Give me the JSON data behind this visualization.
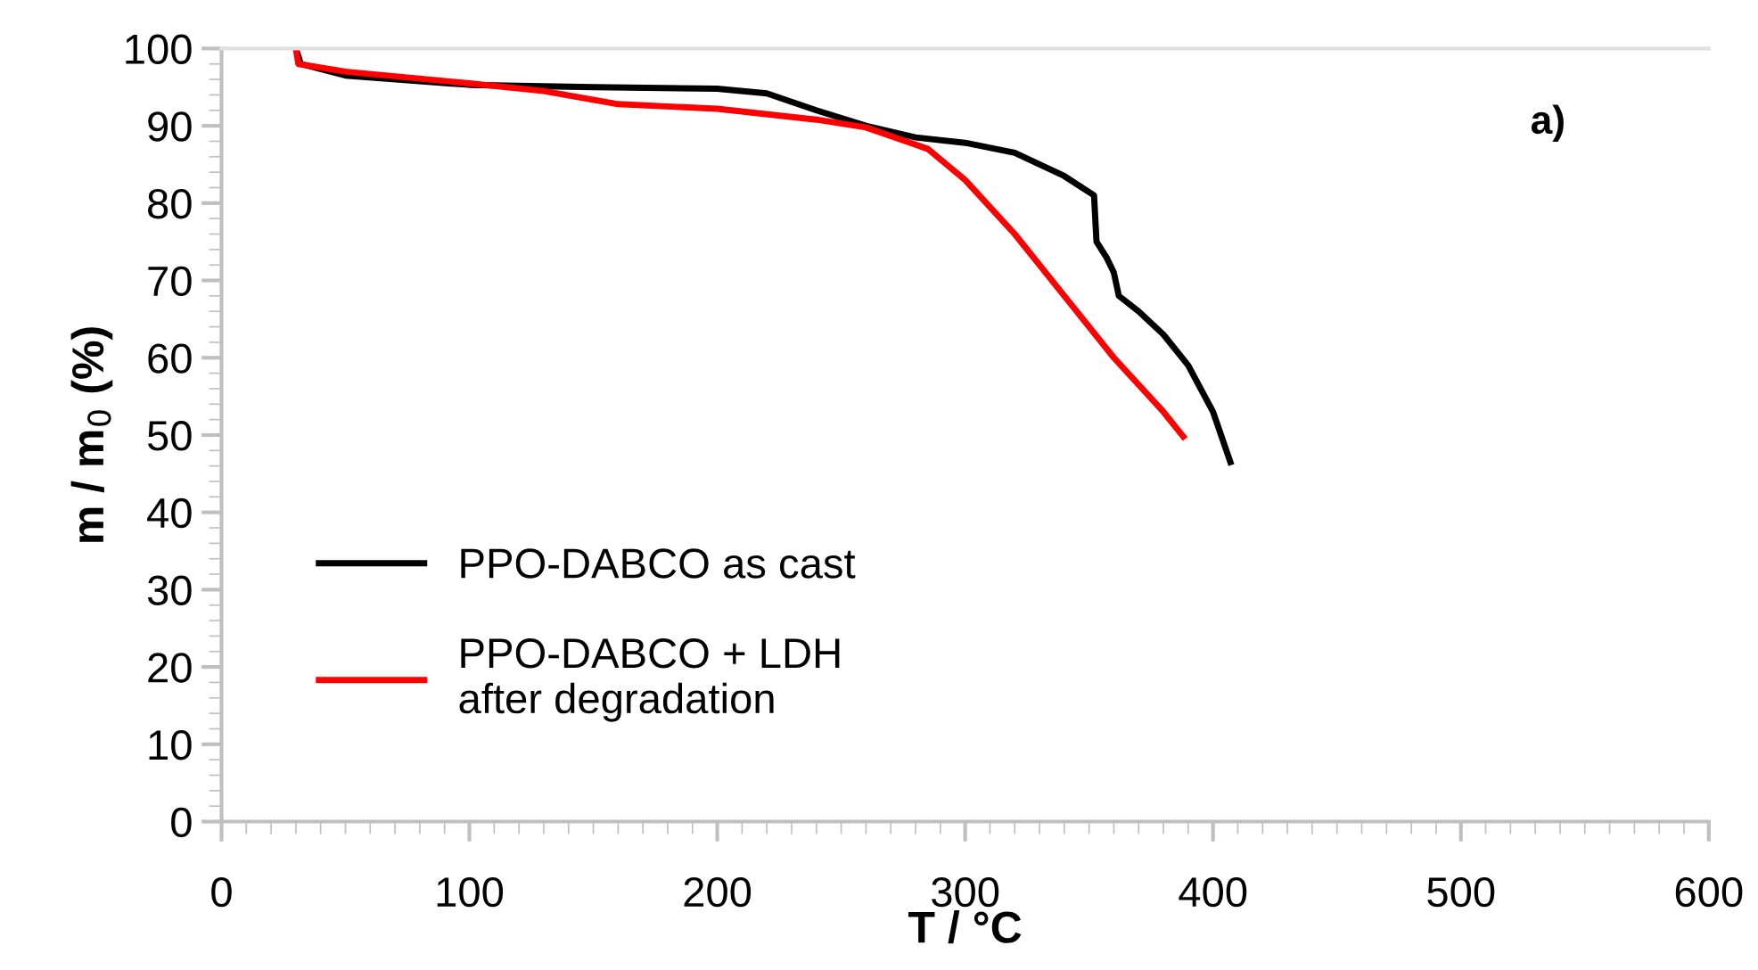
{
  "chart_data": {
    "type": "line",
    "xlabel": "T / °C",
    "ylabel": "m / m$_{0}$ (%)",
    "annotations": [
      "a)"
    ],
    "xlim": [
      0,
      600
    ],
    "xticks": [
      0,
      100,
      200,
      300,
      400,
      500,
      600
    ],
    "ylim": [
      0,
      100
    ],
    "yticks": [
      0,
      10,
      20,
      30,
      40,
      50,
      60,
      70,
      80,
      90,
      100
    ],
    "grid": false,
    "legend": "bottom left",
    "marker": "none",
    "line_style": "solid",
    "series": [
      {
        "name": "PPO-DABCO as cast",
        "color": "#000000",
        "x": [
          30,
          32,
          50,
          100,
          150,
          200,
          220,
          240,
          260,
          280,
          300,
          320,
          340,
          352,
          353,
          357,
          360,
          362,
          370,
          380,
          390,
          400,
          407
        ],
        "values": [
          100,
          98,
          96.5,
          95.3,
          95,
          94.8,
          94.2,
          92,
          90,
          88.5,
          87.8,
          86.5,
          83.5,
          81,
          75,
          73,
          71,
          68,
          66,
          63,
          59,
          53,
          46.5
        ]
      },
      {
        "name": "PPO-DABCO + LDH\nafter degradation",
        "color": "#ff0000",
        "x": [
          30,
          31,
          50,
          100,
          130,
          160,
          200,
          240,
          260,
          285,
          300,
          320,
          340,
          360,
          380,
          388
        ],
        "values": [
          100,
          98,
          97,
          95.5,
          94.5,
          92.8,
          92.2,
          90.8,
          89.8,
          87,
          83,
          76,
          68,
          60,
          53,
          49.8
        ]
      }
    ]
  }
}
